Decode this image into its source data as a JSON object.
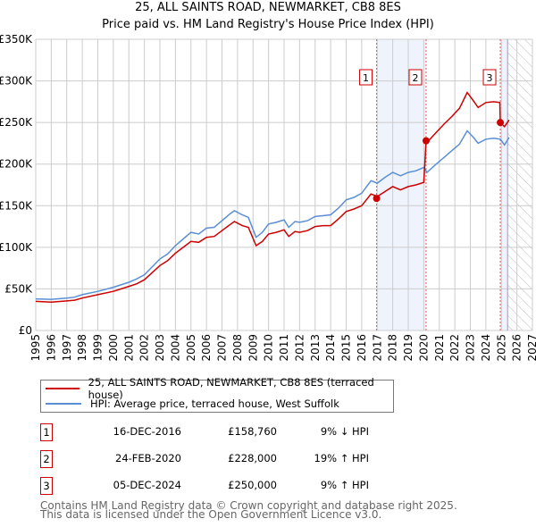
{
  "title": "25, ALL SAINTS ROAD, NEWMARKET, CB8 8ES",
  "subtitle": "Price paid vs. HM Land Registry's House Price Index (HPI)",
  "chart_data": {
    "type": "line",
    "ylim": [
      0,
      350000
    ],
    "xlim": [
      1995,
      2027
    ],
    "yticks": [
      {
        "v": 0,
        "label": "£0"
      },
      {
        "v": 50000,
        "label": "£50K"
      },
      {
        "v": 100000,
        "label": "£100K"
      },
      {
        "v": 150000,
        "label": "£150K"
      },
      {
        "v": 200000,
        "label": "£200K"
      },
      {
        "v": 250000,
        "label": "£250K"
      },
      {
        "v": 300000,
        "label": "£300K"
      },
      {
        "v": 350000,
        "label": "£350K"
      }
    ],
    "xticks": [
      "1995",
      "1996",
      "1997",
      "1998",
      "1999",
      "2000",
      "2001",
      "2002",
      "2003",
      "2004",
      "2005",
      "2006",
      "2007",
      "2008",
      "2009",
      "2010",
      "2011",
      "2012",
      "2013",
      "2014",
      "2015",
      "2016",
      "2017",
      "2018",
      "2019",
      "2020",
      "2021",
      "2022",
      "2023",
      "2024",
      "2025",
      "2026",
      "2027"
    ],
    "x": [
      1995,
      1996,
      1997,
      1997.5,
      1998,
      1999,
      2000,
      2001,
      2001.5,
      2002,
      2003,
      2003.5,
      2004,
      2004.5,
      2005,
      2005.5,
      2006,
      2006.5,
      2007,
      2007.5,
      2007.8,
      2008.3,
      2008.7,
      2009.2,
      2009.6,
      2010,
      2010.5,
      2011,
      2011.3,
      2011.7,
      2012,
      2012.5,
      2013,
      2013.5,
      2014,
      2014.5,
      2015,
      2015.5,
      2016,
      2016.6,
      2017,
      2017.5,
      2018,
      2018.5,
      2019,
      2019.5,
      2020.0,
      2020.15,
      2020.2,
      2020.8,
      2021.3,
      2021.8,
      2022.3,
      2022.8,
      2023.2,
      2023.5,
      2024,
      2024.5,
      2024.9,
      2024.93,
      2025.2,
      2025.5
    ],
    "series": [
      {
        "name": "25, ALL SAINTS ROAD, NEWMARKET, CB8 8ES (terraced house)",
        "color": "#cc0000",
        "values": [
          35000,
          34000,
          35500,
          36400,
          39000,
          43000,
          47000,
          53000,
          56000,
          61000,
          78000,
          84000,
          93000,
          100000,
          107000,
          106000,
          112000,
          113000,
          120000,
          127000,
          131000,
          126000,
          124000,
          102000,
          107000,
          116000,
          118000,
          121000,
          113000,
          119000,
          118000,
          120000,
          125000,
          126000,
          126000,
          134000,
          143000,
          146000,
          150000,
          164000,
          161000,
          167000,
          173000,
          169000,
          173000,
          175000,
          178000,
          228000,
          226000,
          238000,
          248000,
          257000,
          267000,
          286000,
          276000,
          268000,
          274000,
          275000,
          274000,
          250000,
          245000,
          253000
        ]
      },
      {
        "name": "HPI: Average price, terraced house, West Suffolk",
        "color": "#5b8fd4",
        "values": [
          38000,
          37500,
          39000,
          40000,
          43000,
          47000,
          52000,
          58000,
          62000,
          67000,
          86000,
          92000,
          102000,
          110000,
          118000,
          116000,
          123000,
          124000,
          132000,
          140000,
          144000,
          139000,
          136000,
          112000,
          118000,
          128000,
          130000,
          133000,
          124000,
          131000,
          130000,
          132000,
          137000,
          138000,
          139000,
          147000,
          157000,
          160000,
          165000,
          180000,
          177000,
          184000,
          190000,
          186000,
          190000,
          192000,
          196000,
          192000,
          190000,
          200000,
          208000,
          216000,
          224000,
          240000,
          232000,
          225000,
          230000,
          231000,
          230000,
          230000,
          223000,
          232000
        ]
      }
    ],
    "sales": [
      {
        "id": "1",
        "x": 2016.96,
        "value": 158760,
        "date": "16-DEC-2016",
        "price": "£158,760",
        "hpi": "9% ↓ HPI"
      },
      {
        "id": "2",
        "x": 2020.15,
        "value": 228000,
        "date": "24-FEB-2020",
        "price": "£228,000",
        "hpi": "19% ↑ HPI"
      },
      {
        "id": "3",
        "x": 2024.93,
        "value": 250000,
        "date": "05-DEC-2024",
        "price": "£250,000",
        "hpi": "9% ↑ HPI"
      }
    ],
    "shaded_ranges": [
      [
        2016.96,
        2020.15
      ],
      [
        2024.93,
        2025.4
      ]
    ],
    "forecast_hatched_from": 2025.4
  },
  "legend": {
    "property": "25, ALL SAINTS ROAD, NEWMARKET, CB8 8ES (terraced house)",
    "hpi": "HPI: Average price, terraced house, West Suffolk"
  },
  "footer": {
    "line1": "Contains HM Land Registry data © Crown copyright and database right 2025.",
    "line2": "This data is licensed under the Open Government Licence v3.0."
  }
}
